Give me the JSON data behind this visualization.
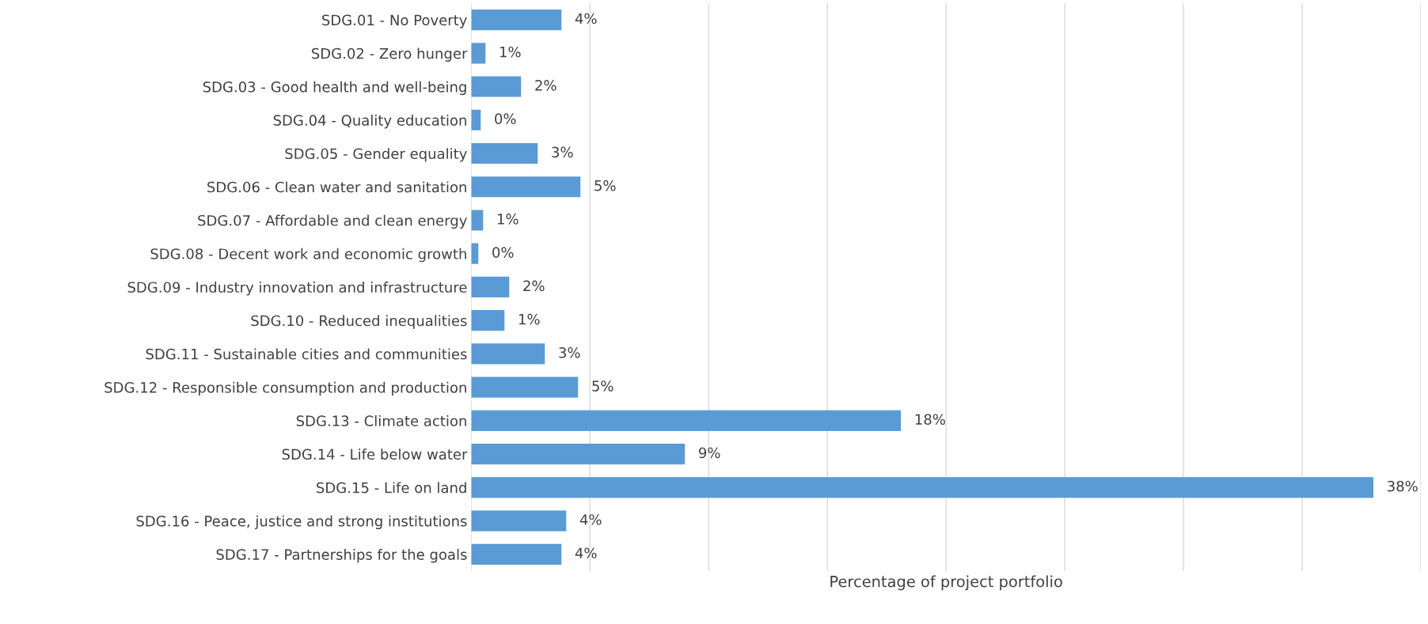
{
  "chart_data": {
    "type": "bar",
    "orientation": "horizontal",
    "xlabel": "Percentage of project portfolio",
    "categories": [
      "SDG.01 - No Poverty",
      "SDG.02 - Zero hunger",
      "SDG.03 - Good health and well-being",
      "SDG.04 - Quality education",
      "SDG.05 - Gender equality",
      "SDG.06 - Clean water and sanitation",
      "SDG.07 - Affordable and clean energy",
      "SDG.08 - Decent work and economic growth",
      "SDG.09 - Industry innovation and infrastructure",
      "SDG.10 - Reduced inequalities",
      "SDG.11 - Sustainable cities and communities",
      "SDG.12 - Responsible consumption and production",
      "SDG.13 - Climate action",
      "SDG.14 - Life below water",
      "SDG.15 - Life on land",
      "SDG.16 - Peace, justice and strong institutions",
      "SDG.17 - Partnerships for the goals"
    ],
    "values": [
      3.8,
      0.6,
      2.1,
      0.4,
      2.8,
      4.6,
      0.5,
      0.3,
      1.6,
      1.4,
      3.1,
      4.5,
      18.1,
      9.0,
      38,
      4.0,
      3.8
    ],
    "value_labels": [
      "4%",
      "1%",
      "2%",
      "0%",
      "3%",
      "5%",
      "1%",
      "0%",
      "2%",
      "1%",
      "3%",
      "5%",
      "18%",
      "9%",
      "38%",
      "4%",
      "4%"
    ],
    "color": "#5b9bd5",
    "xticks": [
      {
        "value": 0,
        "label": null
      },
      {
        "value": 5,
        "label": null
      },
      {
        "value": 10,
        "label": null
      },
      {
        "value": 15,
        "label": null
      },
      {
        "value": 20,
        "label": null
      },
      {
        "value": 25,
        "label": null
      },
      {
        "value": 30,
        "label": null
      },
      {
        "value": 35,
        "label": null
      },
      {
        "value": 40,
        "label": null
      }
    ],
    "grid": "x",
    "tick_labels": "y"
  }
}
